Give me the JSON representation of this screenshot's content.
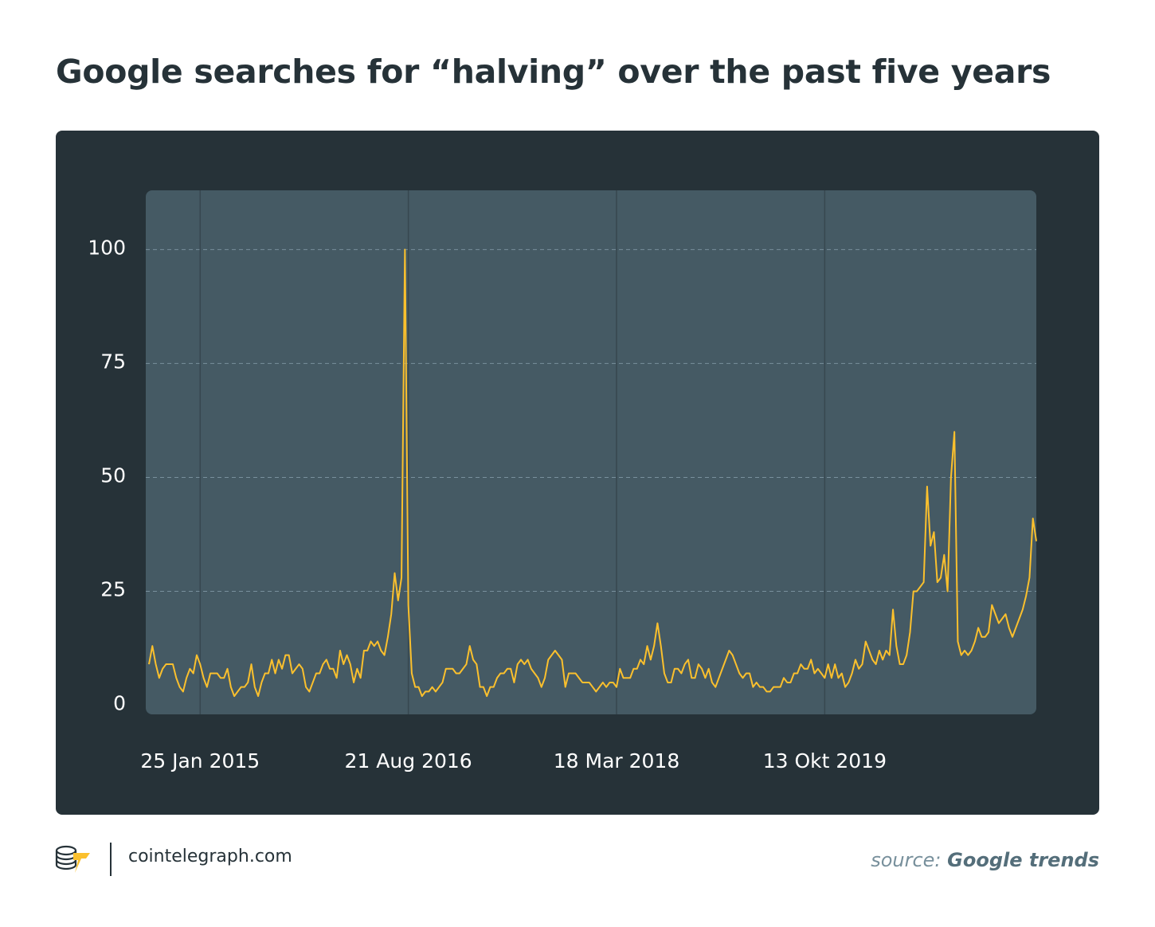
{
  "header": {
    "title": "Google searches for “halving” over the past five years"
  },
  "footer": {
    "site": "cointelegraph.com",
    "source_label": "source: ",
    "source_value": "Google trends",
    "logo_icon": "cointelegraph-coin-stack-icon"
  },
  "colors": {
    "background": "#ffffff",
    "card": "#263238",
    "plot_area": "#455a64",
    "line": "#fbc02d",
    "grid": "#78909c",
    "text_light": "#ffffff",
    "title": "#263238"
  },
  "chart_data": {
    "type": "line",
    "title": "Google searches for “halving” over the past five years",
    "xlabel": "",
    "ylabel": "",
    "ylim": [
      -2,
      113
    ],
    "yticks": [
      0,
      25,
      50,
      75,
      100
    ],
    "x_tick_labels": [
      "25 Jan 2015",
      "21 Aug 2016",
      "18 Mar 2018",
      "13 Okt 2019"
    ],
    "x_tick_index": [
      15,
      76,
      137,
      198
    ],
    "grid": "horizontal dashed at y ticks, vertical solid at x ticks",
    "legend": "none",
    "series": [
      {
        "values": [
          9,
          13,
          9,
          6,
          8,
          9,
          9,
          9,
          6,
          4,
          3,
          6,
          8,
          7,
          11,
          9,
          6,
          4,
          7,
          7,
          7,
          6,
          6,
          8,
          4,
          2,
          3,
          4,
          4,
          5,
          9,
          4,
          2,
          5,
          7,
          7,
          10,
          7,
          10,
          8,
          11,
          11,
          7,
          8,
          9,
          8,
          4,
          3,
          5,
          7,
          7,
          9,
          10,
          8,
          8,
          6,
          12,
          9,
          11,
          9,
          5,
          8,
          6,
          12,
          12,
          14,
          13,
          14,
          12,
          11,
          15,
          20,
          29,
          23,
          28,
          100,
          22,
          7,
          4,
          4,
          2,
          3,
          3,
          4,
          3,
          4,
          5,
          8,
          8,
          8,
          7,
          7,
          8,
          9,
          13,
          10,
          9,
          4,
          4,
          2,
          4,
          4,
          6,
          7,
          7,
          8,
          8,
          5,
          9,
          10,
          9,
          10,
          8,
          7,
          6,
          4,
          6,
          10,
          11,
          12,
          11,
          10,
          4,
          7,
          7,
          7,
          6,
          5,
          5,
          5,
          4,
          3,
          4,
          5,
          4,
          5,
          5,
          4,
          8,
          6,
          6,
          6,
          8,
          8,
          10,
          9,
          13,
          10,
          13,
          18,
          13,
          7,
          5,
          5,
          8,
          8,
          7,
          9,
          10,
          6,
          6,
          9,
          8,
          6,
          8,
          5,
          4,
          6,
          8,
          10,
          12,
          11,
          9,
          7,
          6,
          7,
          7,
          4,
          5,
          4,
          4,
          3,
          3,
          4,
          4,
          4,
          6,
          5,
          5,
          7,
          7,
          9,
          8,
          8,
          10,
          7,
          8,
          7,
          6,
          9,
          6,
          9,
          6,
          7,
          4,
          5,
          7,
          10,
          8,
          9,
          14,
          12,
          10,
          9,
          12,
          10,
          12,
          11,
          21,
          13,
          9,
          9,
          11,
          16,
          25,
          25,
          26,
          27,
          48,
          35,
          38,
          27,
          28,
          33,
          25,
          50,
          60,
          14,
          11,
          12,
          11,
          12,
          14,
          17,
          15,
          15,
          16,
          22,
          20,
          18,
          19,
          20,
          17,
          15,
          17,
          19,
          21,
          24,
          28,
          41,
          36
        ]
      }
    ]
  }
}
